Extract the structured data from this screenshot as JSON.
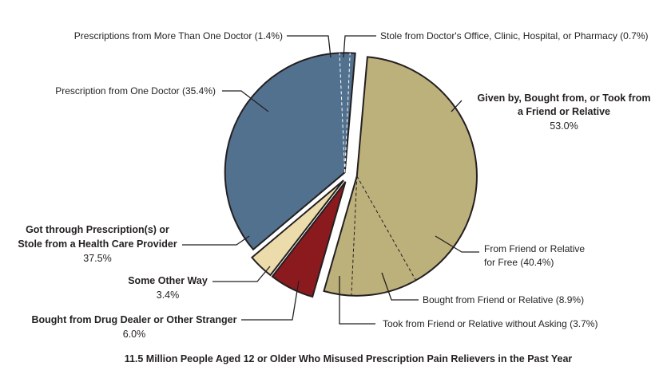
{
  "chart_data": {
    "type": "pie",
    "caption": "11.5 Million People Aged 12 or Older Who Misused Prescription Pain Relievers in the Past Year",
    "groups": [
      {
        "label_lines": [
          "Given by, Bought from, or Took from",
          "a Friend or Relative"
        ],
        "value_label": "53.0%",
        "value": 53.0,
        "color": "#bcb07b",
        "subslices": [
          {
            "label": "From Friend or Relative",
            "label2": "for Free (40.4%)",
            "value": 40.4
          },
          {
            "label": "Bought from Friend or Relative (8.9%)",
            "value": 8.9
          },
          {
            "label": "Took from Friend or Relative without Asking (3.7%)",
            "value": 3.7
          }
        ]
      },
      {
        "label_lines": [
          "Bought from Drug Dealer or Other Stranger"
        ],
        "value_label": "6.0%",
        "value": 6.0,
        "color": "#8b1a1f"
      },
      {
        "label_lines": [
          "Some Other Way"
        ],
        "value_label": "3.4%",
        "value": 3.4,
        "color": "#ecdcab"
      },
      {
        "label_lines": [
          "Got through Prescription(s) or",
          "Stole from a Health Care Provider"
        ],
        "value_label": "37.5%",
        "value": 37.5,
        "color": "#52718f",
        "subslices": [
          {
            "label": "Prescription from One Doctor (35.4%)",
            "value": 35.4
          },
          {
            "label": "Prescriptions from More Than One Doctor (1.4%)",
            "value": 1.4
          },
          {
            "label": "Stole from Doctor's Office, Clinic, Hospital, or Pharmacy (0.7%)",
            "value": 0.7
          }
        ]
      }
    ]
  }
}
